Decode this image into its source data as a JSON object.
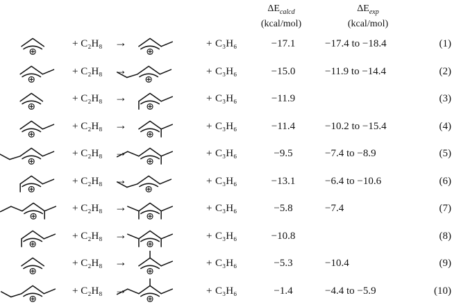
{
  "header": {
    "calcd": {
      "symbol": "ΔE",
      "sub": "calcd",
      "unit": "(kcal/mol)"
    },
    "exp": {
      "symbol": "ΔE",
      "sub": "exp",
      "unit": "(kcal/mol)"
    }
  },
  "reagent": "+ C₂H₈",
  "arrow": "→",
  "plus": "+",
  "product_small": "C₃H₆",
  "rows": [
    {
      "calcd": "−17.1",
      "exp": "−17.4 to −18.4",
      "num": "(1)",
      "prod2": "C₃H₆"
    },
    {
      "calcd": "−15.0",
      "exp": "−11.9 to −14.4",
      "num": "(2)",
      "prod2": "C₃H₆"
    },
    {
      "calcd": "−11.9",
      "exp": "",
      "num": "(3)",
      "prod2": "C₃H₆"
    },
    {
      "calcd": "−11.4",
      "exp": "−10.2 to −15.4",
      "num": "(4)",
      "prod2": "C₃H₆"
    },
    {
      "calcd": "−9.5",
      "exp": "−7.4 to −8.9",
      "num": "(5)",
      "prod2": "C₃H₆"
    },
    {
      "calcd": "−13.1",
      "exp": "−6.4 to −10.6",
      "num": "(6)",
      "prod2": "C₃H₆"
    },
    {
      "calcd": "−5.8",
      "exp": "−7.4",
      "num": "(7)",
      "prod2": "C₃H₆"
    },
    {
      "calcd": "−10.8",
      "exp": "",
      "num": "(8)",
      "prod2": "C₃H₆"
    },
    {
      "calcd": "−5.3",
      "exp": "−10.4",
      "num": "(9)",
      "prod2": "C₃H₆"
    },
    {
      "calcd": "−1.4",
      "exp": "−4.4 to −5.9",
      "num": "(10)",
      "prod2": "C₃H₆"
    }
  ]
}
